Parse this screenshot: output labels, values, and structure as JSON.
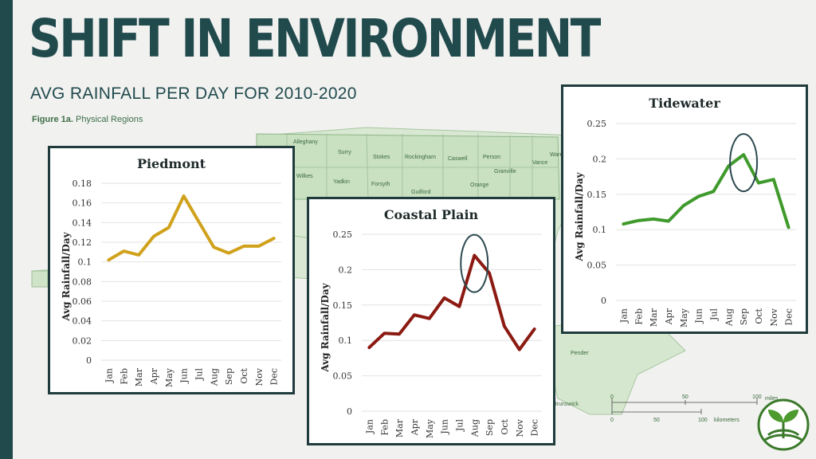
{
  "slide": {
    "title": "SHIFT IN ENVIRONMENT",
    "subtitle": "AVG RAINFALL PER DAY FOR 2010-2020",
    "figure_label": "Figure 1a.",
    "figure_caption": "Physical Regions"
  },
  "map": {
    "counties": [
      "Alleghany",
      "Surry",
      "Stokes",
      "Rockingham",
      "Caswell",
      "Person",
      "Vance",
      "Warren",
      "Wilkes",
      "Yadkin",
      "Forsyth",
      "Guilford",
      "Orange",
      "Granville",
      "Pender",
      "Brunswick"
    ],
    "scale_miles": [
      "0",
      "50",
      "100"
    ],
    "scale_miles_unit": "miles",
    "scale_km": [
      "0",
      "50",
      "100"
    ],
    "scale_km_unit": "kilometers"
  },
  "colors": {
    "title": "#214a4d",
    "piedmont": "#d0a21c",
    "coastal": "#8b1a12",
    "tidewater": "#3f9a2c",
    "map_fill": "#cfe3c8",
    "panel_border": "#1f3b3c"
  },
  "chart_data": [
    {
      "type": "line",
      "title": "Piedmont",
      "ylabel": "Avg Rainfall/Day",
      "categories": [
        "Jan",
        "Feb",
        "Mar",
        "Apr",
        "May",
        "Jun",
        "Jul",
        "Aug",
        "Sep",
        "Oct",
        "Nov",
        "Dec"
      ],
      "series": [
        {
          "values": [
            0.102,
            0.111,
            0.107,
            0.126,
            0.135,
            0.167,
            0.141,
            0.115,
            0.109,
            0.116,
            0.116,
            0.124
          ]
        }
      ],
      "ylim": [
        0,
        0.18
      ],
      "yticks": [
        "0",
        "0.02",
        "0.04",
        "0.06",
        "0.08",
        "0.1",
        "0.12",
        "0.14",
        "0.16",
        "0.18"
      ],
      "grid": true,
      "color": "#d0a21c"
    },
    {
      "type": "line",
      "title": "Coastal Plain",
      "ylabel": "Avg Rainfall/Day",
      "categories": [
        "Jan",
        "Feb",
        "Mar",
        "Apr",
        "May",
        "Jun",
        "Jul",
        "Aug",
        "Sep",
        "Oct",
        "Nov",
        "Dec"
      ],
      "series": [
        {
          "values": [
            0.09,
            0.11,
            0.109,
            0.136,
            0.131,
            0.16,
            0.148,
            0.22,
            0.195,
            0.12,
            0.087,
            0.116
          ]
        }
      ],
      "ylim": [
        0,
        0.25
      ],
      "yticks": [
        "0",
        "0.05",
        "0.1",
        "0.15",
        "0.2",
        "0.25"
      ],
      "grid": true,
      "highlight": "Aug",
      "color": "#8b1a12"
    },
    {
      "type": "line",
      "title": "Tidewater",
      "ylabel": "Avg Rainfall/Day",
      "categories": [
        "Jan",
        "Feb",
        "Mar",
        "Apr",
        "May",
        "Jun",
        "Jul",
        "Aug",
        "Sep",
        "Oct",
        "Nov",
        "Dec"
      ],
      "series": [
        {
          "values": [
            0.108,
            0.113,
            0.115,
            0.112,
            0.134,
            0.147,
            0.154,
            0.19,
            0.206,
            0.166,
            0.171,
            0.103
          ]
        }
      ],
      "ylim": [
        0,
        0.25
      ],
      "yticks": [
        "0",
        "0.05",
        "0.1",
        "0.15",
        "0.2",
        "0.25"
      ],
      "grid": true,
      "highlight": "Sep",
      "color": "#3f9a2c"
    }
  ]
}
